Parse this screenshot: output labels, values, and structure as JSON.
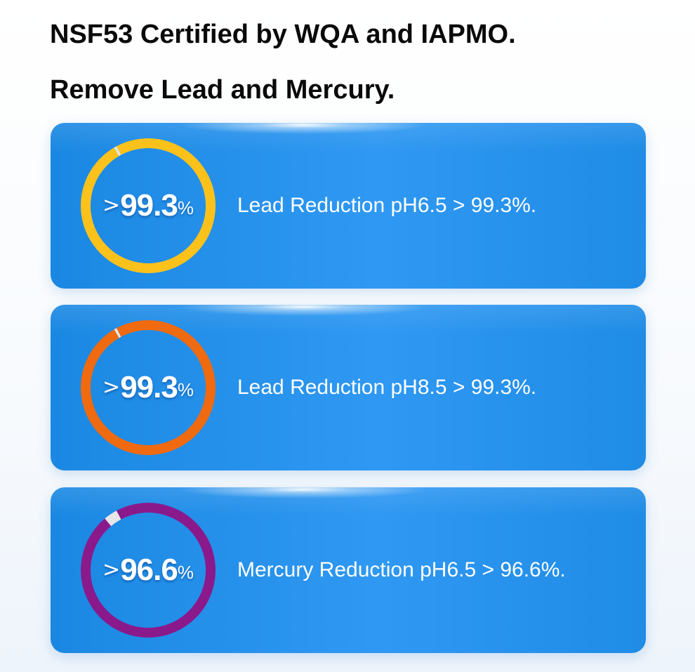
{
  "headings": [
    "NSF53 Certified by WQA and IAPMO.",
    "Remove Lead and Mercury."
  ],
  "cards": [
    {
      "prefix": ">",
      "value": "99.3",
      "suffix": "%",
      "percent": 99.3,
      "ring_color": "#fcc21b",
      "text": "Lead Reduction pH6.5 > 99.3%."
    },
    {
      "prefix": ">",
      "value": "99.3",
      "suffix": "%",
      "percent": 99.3,
      "ring_color": "#f06a0f",
      "text": "Lead Reduction pH8.5 > 99.3%."
    },
    {
      "prefix": ">",
      "value": "96.6",
      "suffix": "%",
      "percent": 96.6,
      "ring_color": "#8a1a8c",
      "text": "Mercury Reduction pH6.5 > 96.6%."
    }
  ],
  "colors": {
    "card_background": "#2a93ee",
    "ring_gap": "#e6e6e6",
    "heading_text": "#0a0a0a"
  }
}
